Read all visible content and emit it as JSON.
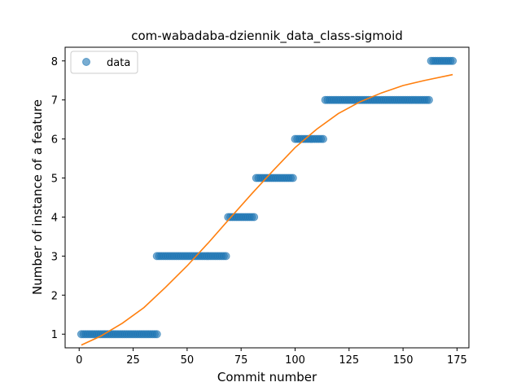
{
  "chart_data": {
    "type": "scatter",
    "title": "com-wabadaba-dziennik_data_class-sigmoid",
    "xlabel": "Commit number",
    "ylabel": "Number of instance of a feature",
    "xlim": [
      -6.5,
      180.5
    ],
    "ylim": [
      0.65,
      8.35
    ],
    "xticks": [
      0,
      25,
      50,
      75,
      100,
      125,
      150,
      175
    ],
    "yticks": [
      1,
      2,
      3,
      4,
      5,
      6,
      7,
      8
    ],
    "grid": false,
    "legend": {
      "placement": "upper-left",
      "entries": [
        "data"
      ]
    },
    "colors": {
      "data": "#1f77b4",
      "fit": "#ff7f0e"
    },
    "series": [
      {
        "name": "data",
        "kind": "scatter",
        "segments": [
          {
            "x_start": 1,
            "x_end": 36,
            "y": 1
          },
          {
            "x_start": 36,
            "x_end": 68,
            "y": 3
          },
          {
            "x_start": 69,
            "x_end": 81,
            "y": 4
          },
          {
            "x_start": 82,
            "x_end": 99,
            "y": 5
          },
          {
            "x_start": 100,
            "x_end": 113,
            "y": 6
          },
          {
            "x_start": 114,
            "x_end": 162,
            "y": 7
          },
          {
            "x_start": 163,
            "x_end": 173,
            "y": 8
          }
        ]
      },
      {
        "kind": "line",
        "x": [
          1,
          10,
          20,
          30,
          40,
          50,
          60,
          70,
          80,
          90,
          100,
          110,
          120,
          130,
          140,
          150,
          160,
          173
        ],
        "y": [
          0.72,
          0.95,
          1.28,
          1.68,
          2.2,
          2.75,
          3.35,
          3.98,
          4.6,
          5.2,
          5.78,
          6.25,
          6.65,
          6.95,
          7.18,
          7.37,
          7.5,
          7.65
        ]
      }
    ]
  }
}
